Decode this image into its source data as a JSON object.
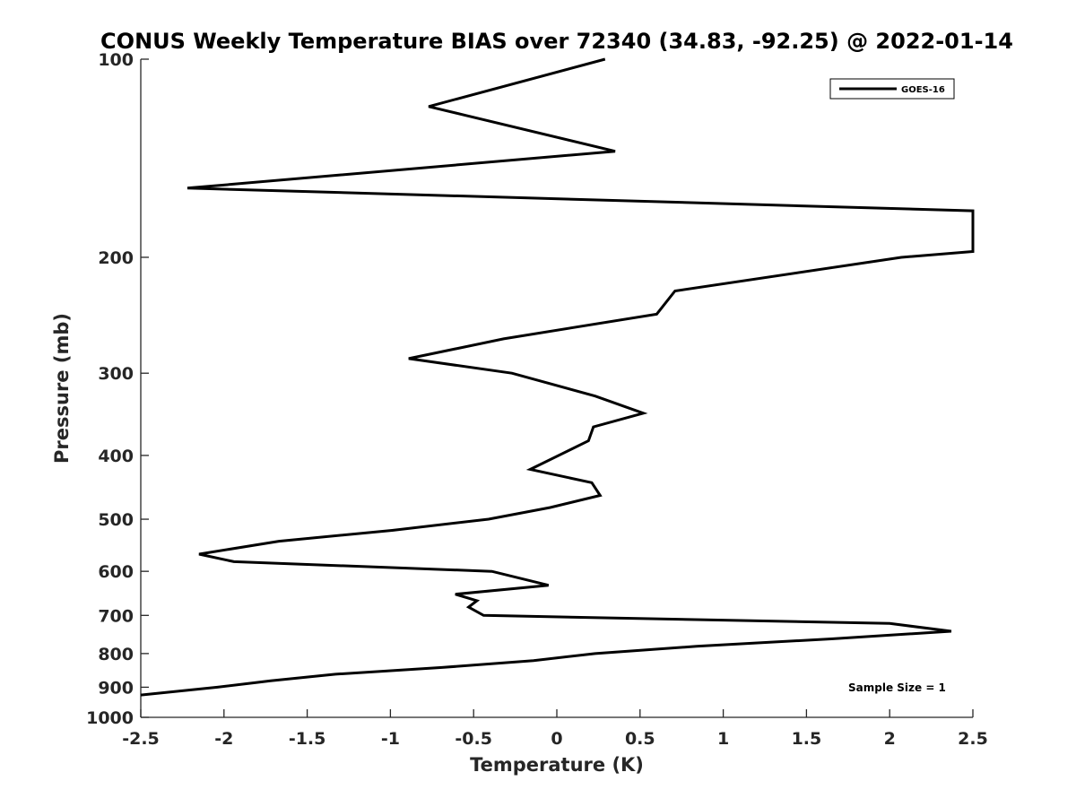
{
  "chart_data": {
    "type": "line",
    "title": "CONUS Weekly Temperature BIAS over 72340 (34.83, -92.25) @ 2022-01-14",
    "xlabel": "Temperature (K)",
    "ylabel": "Pressure (mb)",
    "xlim": [
      -2.5,
      2.5
    ],
    "ylim": [
      1000,
      100
    ],
    "yscale": "log",
    "y_reversed": true,
    "xticks": [
      -2.5,
      -2,
      -1.5,
      -1,
      -0.5,
      0,
      0.5,
      1,
      1.5,
      2,
      2.5
    ],
    "xtick_labels": [
      "-2.5",
      "-2",
      "-1.5",
      "-1",
      "-0.5",
      "0",
      "0.5",
      "1",
      "1.5",
      "2",
      "2.5"
    ],
    "yticks": [
      100,
      200,
      300,
      400,
      500,
      600,
      700,
      800,
      900,
      1000
    ],
    "ytick_labels": [
      "100",
      "200",
      "300",
      "400",
      "500",
      "600",
      "700",
      "800",
      "900",
      "1000"
    ],
    "grid": false,
    "legend_position": "top-right",
    "annotation": "Sample Size = 1",
    "color": "#000000",
    "series": [
      {
        "name": "GOES-16",
        "points": [
          {
            "x": 0.29,
            "y": 100
          },
          {
            "x": -0.77,
            "y": 118
          },
          {
            "x": 0.35,
            "y": 138
          },
          {
            "x": -2.22,
            "y": 157
          },
          {
            "x": 2.5,
            "y": 170
          },
          {
            "x": 2.5,
            "y": 196
          },
          {
            "x": 2.07,
            "y": 200
          },
          {
            "x": 0.71,
            "y": 225
          },
          {
            "x": 0.6,
            "y": 244
          },
          {
            "x": -0.32,
            "y": 266
          },
          {
            "x": -0.89,
            "y": 285
          },
          {
            "x": -0.27,
            "y": 300
          },
          {
            "x": 0.23,
            "y": 325
          },
          {
            "x": 0.52,
            "y": 345
          },
          {
            "x": 0.22,
            "y": 362
          },
          {
            "x": 0.19,
            "y": 380
          },
          {
            "x": -0.16,
            "y": 420
          },
          {
            "x": 0.21,
            "y": 440
          },
          {
            "x": 0.26,
            "y": 460
          },
          {
            "x": -0.04,
            "y": 480
          },
          {
            "x": -0.41,
            "y": 500
          },
          {
            "x": -0.99,
            "y": 520
          },
          {
            "x": -1.67,
            "y": 540
          },
          {
            "x": -2.15,
            "y": 565
          },
          {
            "x": -1.94,
            "y": 580
          },
          {
            "x": -0.39,
            "y": 600
          },
          {
            "x": -0.05,
            "y": 630
          },
          {
            "x": -0.61,
            "y": 650
          },
          {
            "x": -0.48,
            "y": 665
          },
          {
            "x": -0.53,
            "y": 680
          },
          {
            "x": -0.44,
            "y": 700
          },
          {
            "x": 2.0,
            "y": 720
          },
          {
            "x": 2.37,
            "y": 740
          },
          {
            "x": 1.65,
            "y": 760
          },
          {
            "x": 0.84,
            "y": 780
          },
          {
            "x": 0.23,
            "y": 800
          },
          {
            "x": -0.14,
            "y": 820
          },
          {
            "x": -0.69,
            "y": 840
          },
          {
            "x": -1.33,
            "y": 860
          },
          {
            "x": -1.72,
            "y": 880
          },
          {
            "x": -2.04,
            "y": 900
          },
          {
            "x": -2.5,
            "y": 925
          }
        ]
      }
    ]
  }
}
